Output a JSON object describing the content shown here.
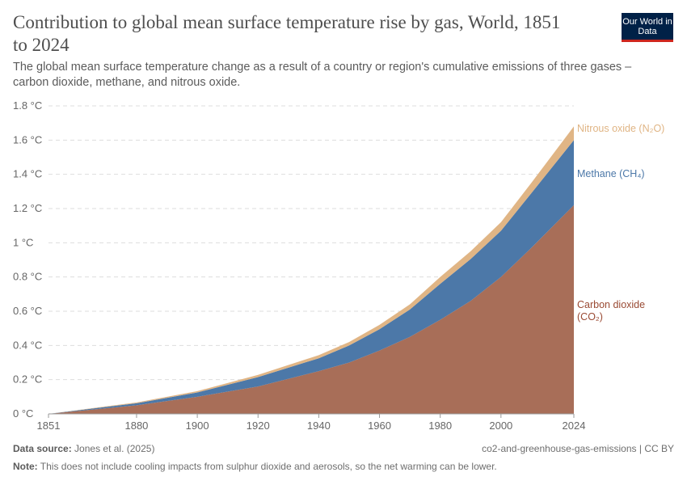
{
  "header": {
    "title": "Contribution to global mean surface temperature rise by gas, World, 1851 to 2024",
    "subtitle": "The global mean surface temperature change as a result of a country or region's cumulative emissions of three gases – carbon dioxide, methane, and nitrous oxide.",
    "logo_text": "Our World in Data"
  },
  "chart_data": {
    "type": "area",
    "stacked": true,
    "x": [
      1851,
      1880,
      1900,
      1920,
      1940,
      1950,
      1960,
      1970,
      1980,
      1990,
      2000,
      2010,
      2024
    ],
    "series": [
      {
        "name": "Carbon dioxide (CO₂)",
        "color": "#a86e58",
        "values": [
          0,
          0.05,
          0.1,
          0.16,
          0.25,
          0.3,
          0.37,
          0.45,
          0.55,
          0.66,
          0.8,
          0.97,
          1.22
        ]
      },
      {
        "name": "Methane (CH₄)",
        "color": "#4c78a8",
        "values": [
          0,
          0.012,
          0.025,
          0.055,
          0.075,
          0.1,
          0.125,
          0.16,
          0.21,
          0.245,
          0.27,
          0.32,
          0.38
        ]
      },
      {
        "name": "Nitrous oxide (N₂O)",
        "color": "#e0b585",
        "values": [
          0,
          0.005,
          0.008,
          0.013,
          0.018,
          0.02,
          0.025,
          0.03,
          0.04,
          0.045,
          0.05,
          0.06,
          0.08
        ]
      }
    ],
    "ylim": [
      0,
      1.8
    ],
    "yticks": [
      "0 °C",
      "0.2 °C",
      "0.4 °C",
      "0.6 °C",
      "0.8 °C",
      "1 °C",
      "1.2 °C",
      "1.4 °C",
      "1.6 °C",
      "1.8 °C"
    ],
    "xticks": [
      "1851",
      "1880",
      "1900",
      "1920",
      "1940",
      "1960",
      "1980",
      "2000",
      "2024"
    ],
    "grid": true,
    "legend": "right-inline",
    "label_lines": {
      "co2": [
        "Carbon dioxide",
        "(CO₂)"
      ]
    }
  },
  "footer": {
    "source_label": "Data source:",
    "source": "Jones et al. (2025)",
    "slug": "co2-and-greenhouse-gas-emissions | CC BY",
    "note_label": "Note:",
    "note": "This does not include cooling impacts from sulphur dioxide and aerosols, so the net warming can be lower."
  }
}
